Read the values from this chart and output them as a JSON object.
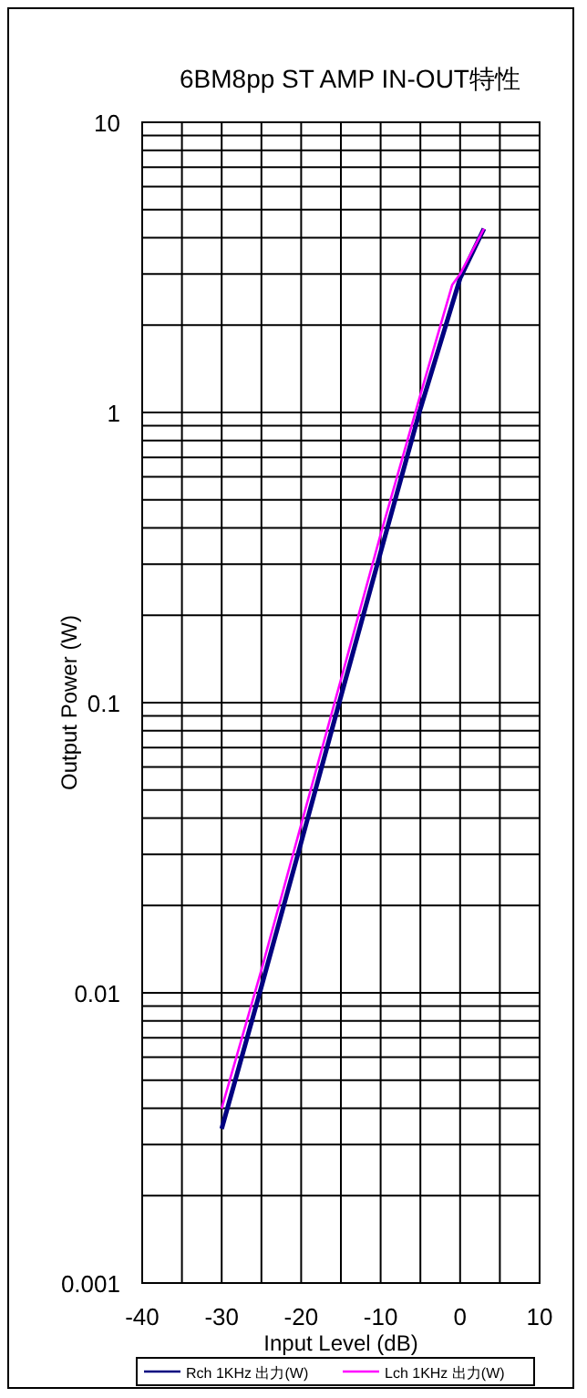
{
  "chart_data": {
    "type": "line",
    "title": "6BM8pp ST AMP IN-OUT特性",
    "xlabel": "Input Level (dB)",
    "ylabel": "Output Power (W)",
    "log": "y",
    "grid": true,
    "legend": "bottom",
    "marker": "none",
    "line_style": "solid",
    "xlim": [
      -40,
      10
    ],
    "xticks": [
      -40,
      {
        "value": -35,
        "label": null
      },
      -30,
      {
        "value": -25,
        "label": null
      },
      -20,
      {
        "value": -15,
        "label": null
      },
      -10,
      {
        "value": -5,
        "label": null
      },
      0,
      {
        "value": 5,
        "label": null
      },
      10
    ],
    "ylim": [
      0.001,
      10
    ],
    "yticks": [
      0.001,
      0.01,
      0.1,
      1,
      10
    ],
    "series": [
      {
        "name": "Rch 1KHz 出力(W)",
        "color": "#000080",
        "x": [
          -30,
          -25,
          -20,
          -15,
          -10,
          -5,
          0,
          3
        ],
        "values": [
          0.0034,
          0.0105,
          0.033,
          0.105,
          0.33,
          1.03,
          2.9,
          4.3
        ]
      },
      {
        "name": "Lch 1KHz 出力(W)",
        "color": "#ff00ff",
        "x": [
          -30,
          -25,
          -20,
          -15,
          -10,
          -5,
          -1,
          0,
          3
        ],
        "values": [
          0.004,
          0.012,
          0.038,
          0.12,
          0.38,
          1.15,
          2.75,
          3.0,
          4.3
        ]
      }
    ]
  }
}
